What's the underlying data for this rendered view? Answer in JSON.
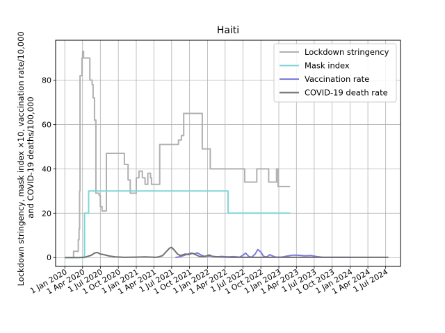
{
  "chart_data": {
    "type": "line",
    "title": "Haiti",
    "xlabel": "",
    "ylabel_lines": [
      "Lockdown stringency, mask index ×10, vaccination rate/10,000",
      "and COVID-19 deaths/100,000"
    ],
    "x_axis_type": "date",
    "xlim": [
      "2019-11-15",
      "2024-09-15"
    ],
    "ylim": [
      -4,
      98
    ],
    "yticks": [
      0,
      20,
      40,
      60,
      80
    ],
    "xticks": [
      {
        "date": "2020-01-01",
        "label": "1 Jan 2020"
      },
      {
        "date": "2020-04-01",
        "label": "1 Apr 2020"
      },
      {
        "date": "2020-07-01",
        "label": "1 Jul 2020"
      },
      {
        "date": "2020-10-01",
        "label": "1 Oct 2020"
      },
      {
        "date": "2021-01-01",
        "label": "1 Jan 2021"
      },
      {
        "date": "2021-04-01",
        "label": "1 Apr 2021"
      },
      {
        "date": "2021-07-01",
        "label": "1 Jul 2021"
      },
      {
        "date": "2021-10-01",
        "label": "1 Oct 2021"
      },
      {
        "date": "2022-01-01",
        "label": "1 Jan 2022"
      },
      {
        "date": "2022-04-01",
        "label": "1 Apr 2022"
      },
      {
        "date": "2022-07-01",
        "label": "1 Jul 2022"
      },
      {
        "date": "2022-10-01",
        "label": "1 Oct 2022"
      },
      {
        "date": "2023-01-01",
        "label": "1 Jan 2023"
      },
      {
        "date": "2023-04-01",
        "label": "1 Apr 2023"
      },
      {
        "date": "2023-07-01",
        "label": "1 Jul 2023"
      },
      {
        "date": "2023-10-01",
        "label": "1 Oct 2023"
      },
      {
        "date": "2024-01-01",
        "label": "1 Jan 2024"
      },
      {
        "date": "2024-04-01",
        "label": "1 Apr 2024"
      },
      {
        "date": "2024-07-01",
        "label": "1 Jul 2024"
      }
    ],
    "grid": true,
    "legend_position": "top-right",
    "series": [
      {
        "name": "Lockdown stringency",
        "color": "#b0b0b0",
        "step": true,
        "points": [
          [
            "2020-01-01",
            0
          ],
          [
            "2020-02-10",
            0
          ],
          [
            "2020-02-15",
            2.8
          ],
          [
            "2020-03-05",
            2.8
          ],
          [
            "2020-03-10",
            8
          ],
          [
            "2020-03-14",
            13
          ],
          [
            "2020-03-17",
            30
          ],
          [
            "2020-03-19",
            82
          ],
          [
            "2020-03-29",
            90
          ],
          [
            "2020-04-01",
            93
          ],
          [
            "2020-04-06",
            90
          ],
          [
            "2020-05-05",
            90
          ],
          [
            "2020-05-08",
            80
          ],
          [
            "2020-05-20",
            78
          ],
          [
            "2020-05-25",
            72
          ],
          [
            "2020-06-01",
            62
          ],
          [
            "2020-06-08",
            29
          ],
          [
            "2020-06-25",
            28
          ],
          [
            "2020-07-01",
            23
          ],
          [
            "2020-07-10",
            21
          ],
          [
            "2020-08-01",
            47
          ],
          [
            "2020-10-31",
            47
          ],
          [
            "2020-11-01",
            42
          ],
          [
            "2020-11-20",
            35
          ],
          [
            "2020-12-01",
            29
          ],
          [
            "2021-01-01",
            36
          ],
          [
            "2021-01-15",
            39
          ],
          [
            "2021-02-01",
            36
          ],
          [
            "2021-02-15",
            33
          ],
          [
            "2021-03-01",
            38
          ],
          [
            "2021-03-15",
            36
          ],
          [
            "2021-03-20",
            33
          ],
          [
            "2021-05-01",
            51
          ],
          [
            "2021-08-01",
            51
          ],
          [
            "2021-08-05",
            53
          ],
          [
            "2021-08-20",
            55
          ],
          [
            "2021-09-01",
            65
          ],
          [
            "2021-12-01",
            65
          ],
          [
            "2021-12-05",
            49
          ],
          [
            "2022-01-01",
            49
          ],
          [
            "2022-01-15",
            40
          ],
          [
            "2022-07-01",
            40
          ],
          [
            "2022-07-10",
            34
          ],
          [
            "2022-09-01",
            34
          ],
          [
            "2022-09-10",
            40
          ],
          [
            "2022-11-01",
            40
          ],
          [
            "2022-11-10",
            34
          ],
          [
            "2022-12-15",
            34
          ],
          [
            "2022-12-20",
            40
          ],
          [
            "2022-12-28",
            32
          ],
          [
            "2023-02-28",
            32
          ]
        ]
      },
      {
        "name": "Mask index",
        "color": "#7fd6d6",
        "step": true,
        "points": [
          [
            "2020-01-01",
            0
          ],
          [
            "2020-04-10",
            0
          ],
          [
            "2020-04-11",
            20
          ],
          [
            "2020-05-01",
            20
          ],
          [
            "2020-05-02",
            30
          ],
          [
            "2022-04-15",
            30
          ],
          [
            "2022-04-16",
            20
          ],
          [
            "2023-02-28",
            20
          ]
        ]
      },
      {
        "name": "Vaccination rate",
        "color": "#7b7bdd",
        "step": false,
        "points": [
          [
            "2021-07-20",
            0
          ],
          [
            "2021-08-15",
            0.4
          ],
          [
            "2021-09-01",
            0.9
          ],
          [
            "2021-09-20",
            1.5
          ],
          [
            "2021-10-10",
            2.0
          ],
          [
            "2021-10-25",
            1.6
          ],
          [
            "2021-11-10",
            2.1
          ],
          [
            "2021-12-01",
            1.0
          ],
          [
            "2021-12-20",
            0.5
          ],
          [
            "2022-01-15",
            0.7
          ],
          [
            "2022-02-15",
            0.3
          ],
          [
            "2022-03-15",
            0.5
          ],
          [
            "2022-04-15",
            0.3
          ],
          [
            "2022-05-15",
            0.4
          ],
          [
            "2022-06-15",
            0.2
          ],
          [
            "2022-07-01",
            1.0
          ],
          [
            "2022-07-15",
            2.0
          ],
          [
            "2022-08-01",
            0.4
          ],
          [
            "2022-08-15",
            0.2
          ],
          [
            "2022-09-01",
            1.5
          ],
          [
            "2022-09-15",
            3.6
          ],
          [
            "2022-10-01",
            2.5
          ],
          [
            "2022-10-15",
            0.5
          ],
          [
            "2022-11-01",
            0.3
          ],
          [
            "2022-11-15",
            1.3
          ],
          [
            "2022-12-01",
            0.7
          ],
          [
            "2022-12-15",
            0.2
          ],
          [
            "2023-01-15",
            0.2
          ],
          [
            "2023-02-15",
            0.7
          ],
          [
            "2023-03-15",
            1.1
          ],
          [
            "2023-04-15",
            1.0
          ],
          [
            "2023-05-15",
            0.8
          ],
          [
            "2023-06-15",
            0.9
          ],
          [
            "2023-07-15",
            0.4
          ],
          [
            "2023-08-15",
            0.1
          ],
          [
            "2023-12-31",
            0.1
          ]
        ]
      },
      {
        "name": "COVID-19 death rate",
        "color": "#707070",
        "step": false,
        "points": [
          [
            "2020-01-01",
            0
          ],
          [
            "2020-03-15",
            0
          ],
          [
            "2020-04-15",
            0.2
          ],
          [
            "2020-05-15",
            1.0
          ],
          [
            "2020-06-01",
            2.0
          ],
          [
            "2020-06-15",
            2.3
          ],
          [
            "2020-07-01",
            1.6
          ],
          [
            "2020-07-20",
            1.3
          ],
          [
            "2020-08-15",
            0.7
          ],
          [
            "2020-09-15",
            0.3
          ],
          [
            "2020-11-01",
            0.1
          ],
          [
            "2021-01-01",
            0.2
          ],
          [
            "2021-02-15",
            0.3
          ],
          [
            "2021-04-15",
            0.1
          ],
          [
            "2021-05-15",
            0.8
          ],
          [
            "2021-06-01",
            2.4
          ],
          [
            "2021-06-20",
            4.2
          ],
          [
            "2021-07-01",
            4.6
          ],
          [
            "2021-07-15",
            3.3
          ],
          [
            "2021-08-01",
            1.5
          ],
          [
            "2021-08-15",
            0.9
          ],
          [
            "2021-09-10",
            1.6
          ],
          [
            "2021-09-25",
            1.3
          ],
          [
            "2021-10-15",
            1.9
          ],
          [
            "2021-11-01",
            1.3
          ],
          [
            "2021-11-20",
            0.5
          ],
          [
            "2021-12-15",
            0.4
          ],
          [
            "2022-01-10",
            1.2
          ],
          [
            "2022-01-25",
            0.5
          ],
          [
            "2022-03-01",
            0.3
          ],
          [
            "2022-05-01",
            0.1
          ],
          [
            "2024-07-15",
            0.1
          ]
        ]
      }
    ]
  }
}
